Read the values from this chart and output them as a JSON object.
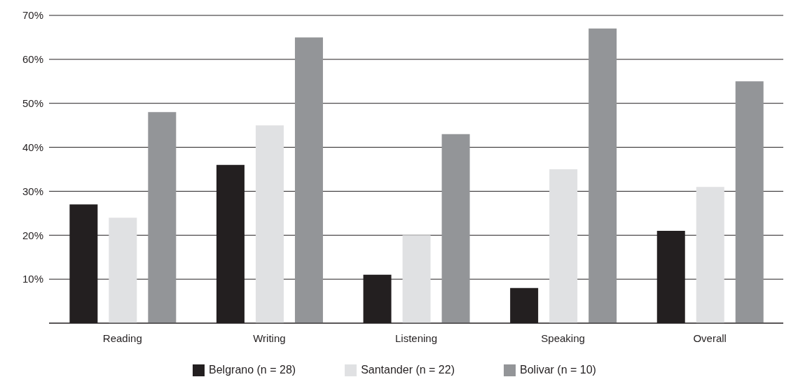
{
  "chart_data": {
    "type": "bar",
    "categories": [
      "Reading",
      "Writing",
      "Listening",
      "Speaking",
      "Overall"
    ],
    "series": [
      {
        "name": "Belgrano (n = 28)",
        "color": "#231f20",
        "values": [
          27,
          36,
          11,
          8,
          21
        ]
      },
      {
        "name": "Santander (n = 22)",
        "color": "#e0e1e3",
        "values": [
          24,
          45,
          20,
          35,
          31
        ]
      },
      {
        "name": "Bolivar (n = 10)",
        "color": "#939598",
        "values": [
          48,
          65,
          43,
          67,
          55
        ]
      }
    ],
    "ylim": [
      0,
      70
    ],
    "yticks": [
      {
        "value": 0,
        "label": null
      },
      {
        "value": 10,
        "label": "10%"
      },
      {
        "value": 20,
        "label": "20%"
      },
      {
        "value": 30,
        "label": "30%"
      },
      {
        "value": 40,
        "label": "40%"
      },
      {
        "value": 50,
        "label": "50%"
      },
      {
        "value": 60,
        "label": "60%"
      },
      {
        "value": 70,
        "label": "70%"
      }
    ],
    "grid": "y",
    "legend": "bottom"
  }
}
